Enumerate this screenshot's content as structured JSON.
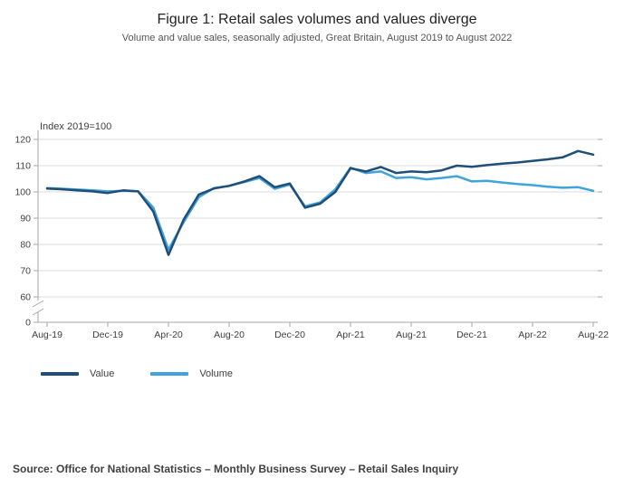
{
  "header": {
    "title": "Figure 1: Retail sales volumes and values diverge",
    "subtitle": "Volume and value sales, seasonally adjusted, Great Britain, August 2019 to August 2022"
  },
  "chart_data": {
    "type": "line",
    "title": "Figure 1: Retail sales volumes and values diverge",
    "subtitle": "Volume and value sales, seasonally adjusted, Great Britain, August 2019 to August 2022",
    "ylabel": "Index 2019=100",
    "ylim": [
      0,
      120
    ],
    "y_axis_break": [
      0,
      60
    ],
    "y_ticks": [
      120,
      110,
      100,
      90,
      80,
      70,
      60
    ],
    "x_tick_labels": [
      "Aug-19",
      "Dec-19",
      "Apr-20",
      "Aug-20",
      "Dec-20",
      "Apr-21",
      "Aug-21",
      "Dec-21",
      "Apr-22",
      "Aug-22"
    ],
    "x_tick_step": 4,
    "grid": "horizontal",
    "legend_position": "bottom-left",
    "axis_color": "#a6a6a6",
    "grid_color": "#dcdcdc",
    "months": [
      "Aug-19",
      "Sep-19",
      "Oct-19",
      "Nov-19",
      "Dec-19",
      "Jan-20",
      "Feb-20",
      "Mar-20",
      "Apr-20",
      "May-20",
      "Jun-20",
      "Jul-20",
      "Aug-20",
      "Sep-20",
      "Oct-20",
      "Nov-20",
      "Dec-20",
      "Jan-21",
      "Feb-21",
      "Mar-21",
      "Apr-21",
      "May-21",
      "Jun-21",
      "Jul-21",
      "Aug-21",
      "Sep-21",
      "Oct-21",
      "Nov-21",
      "Dec-21",
      "Jan-22",
      "Feb-22",
      "Mar-22",
      "Apr-22",
      "May-22",
      "Jun-22",
      "Jul-22",
      "Aug-22"
    ],
    "series": [
      {
        "name": "Value",
        "color": "#1f4e79",
        "values": [
          101.3,
          101.0,
          100.6,
          100.2,
          99.6,
          100.6,
          100.2,
          92.5,
          76.0,
          89.5,
          99.0,
          101.3,
          102.3,
          104.0,
          106.0,
          101.8,
          103.2,
          94.0,
          95.5,
          100.0,
          109.0,
          107.8,
          109.5,
          107.2,
          107.8,
          107.5,
          108.2,
          110.0,
          109.6,
          110.2,
          110.8,
          111.2,
          111.8,
          112.4,
          113.2,
          115.6,
          114.2
        ]
      },
      {
        "name": "Volume",
        "color": "#3fa3dc",
        "values": [
          101.5,
          101.2,
          100.9,
          100.6,
          100.2,
          100.4,
          100.2,
          94.0,
          78.0,
          88.5,
          98.0,
          101.5,
          102.3,
          103.8,
          105.3,
          101.2,
          102.8,
          94.5,
          96.0,
          101.0,
          109.2,
          107.2,
          107.8,
          105.3,
          105.6,
          104.8,
          105.3,
          106.0,
          104.0,
          104.2,
          103.6,
          103.0,
          102.6,
          102.0,
          101.6,
          101.8,
          100.4
        ]
      }
    ]
  },
  "footer": {
    "source": "Source: Office for National Statistics – Monthly Business Survey – Retail Sales Inquiry"
  }
}
